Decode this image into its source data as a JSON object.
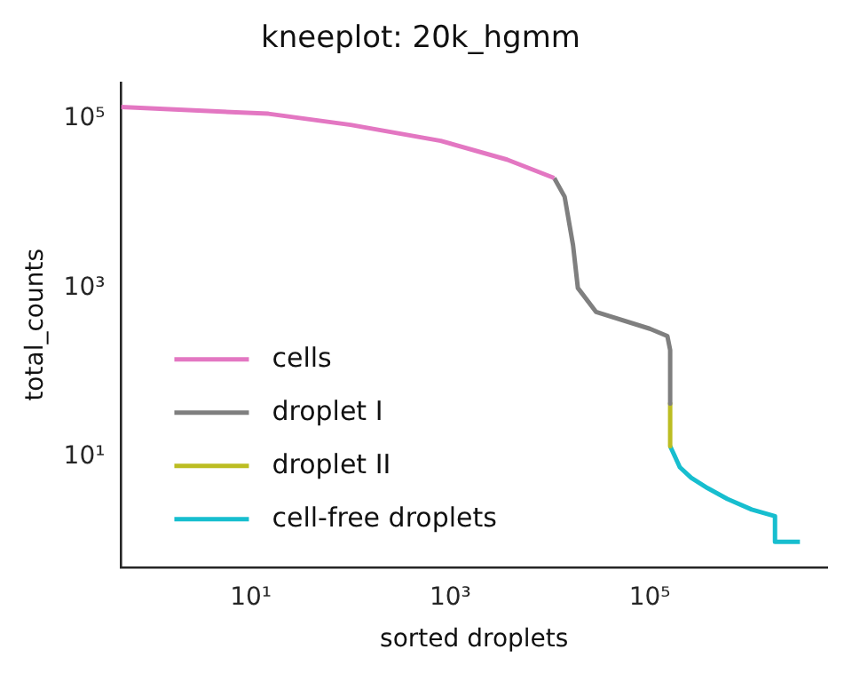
{
  "chart_data": {
    "type": "line",
    "title": "kneeplot: 20k_hgmm",
    "xlabel": "sorted droplets",
    "ylabel": "total_counts",
    "log": "xy",
    "grid": false,
    "legend": "lower left",
    "marker": "none",
    "line_style": "solid",
    "xlim": [
      0.5,
      6000000
    ],
    "xticks": [
      {
        "value": 10,
        "label": "10¹"
      },
      {
        "value": 1000,
        "label": "10³"
      },
      {
        "value": 100000,
        "label": "10⁵"
      }
    ],
    "ylim": [
      0.5,
      270000
    ],
    "yticks": [
      {
        "value": 10,
        "label": "10¹"
      },
      {
        "value": 1000,
        "label": "10³"
      },
      {
        "value": 100000,
        "label": "10⁵"
      }
    ],
    "series": [
      {
        "name": "cells",
        "color": "#e377c2",
        "x": [
          0.5,
          15,
          100,
          800,
          3700,
          11000
        ],
        "values": [
          138000,
          115000,
          85000,
          55000,
          33000,
          20000
        ]
      },
      {
        "name": "droplet I",
        "color": "#7f7f7f",
        "x": [
          11000,
          14000,
          17000,
          19000,
          29000,
          100000,
          150000,
          160000,
          160000
        ],
        "values": [
          20000,
          12000,
          3200,
          1000,
          520,
          330,
          270,
          185,
          43
        ]
      },
      {
        "name": "droplet II",
        "color": "#bcbd22",
        "x": [
          160000,
          160000
        ],
        "values": [
          43,
          13.5
        ]
      },
      {
        "name": "cell-free droplets",
        "color": "#17becf",
        "x": [
          160000,
          200000,
          260000,
          380000,
          600000,
          1050000,
          1800000,
          1800000,
          3200000
        ],
        "values": [
          13.5,
          7.6,
          5.7,
          4.3,
          3.2,
          2.4,
          2.0,
          1,
          1
        ]
      }
    ]
  }
}
